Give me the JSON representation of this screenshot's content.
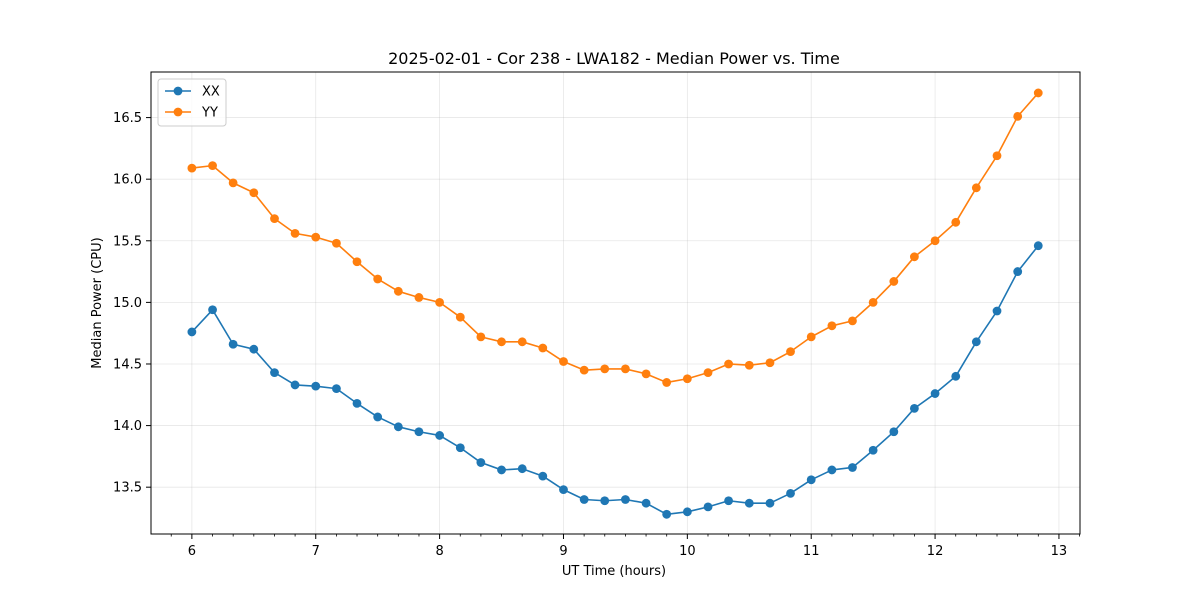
{
  "chart_data": {
    "type": "line",
    "title": "2025-02-01 - Cor 238 - LWA182 - Median Power vs. Time",
    "xlabel": "UT Time (hours)",
    "ylabel": "Median Power (CPU)",
    "xlim": [
      5.67,
      13.17
    ],
    "ylim": [
      13.12,
      16.87
    ],
    "xticks": [
      6,
      7,
      8,
      9,
      10,
      11,
      12,
      13
    ],
    "xtick_labels": [
      "6",
      "7",
      "8",
      "9",
      "10",
      "11",
      "12",
      "13"
    ],
    "yticks": [
      13.5,
      14.0,
      14.5,
      15.0,
      15.5,
      16.0,
      16.5
    ],
    "ytick_labels": [
      "13.5",
      "14.0",
      "14.5",
      "15.0",
      "15.5",
      "16.0",
      "16.5"
    ],
    "grid": true,
    "legend_position": "top-left",
    "x": [
      6.0,
      6.167,
      6.333,
      6.5,
      6.667,
      6.833,
      7.0,
      7.167,
      7.333,
      7.5,
      7.667,
      7.833,
      8.0,
      8.167,
      8.333,
      8.5,
      8.667,
      8.833,
      9.0,
      9.167,
      9.333,
      9.5,
      9.667,
      9.833,
      10.0,
      10.167,
      10.333,
      10.5,
      10.667,
      10.833,
      11.0,
      11.167,
      11.333,
      11.5,
      11.667,
      11.833,
      12.0,
      12.167,
      12.333,
      12.5,
      12.667,
      12.833
    ],
    "series": [
      {
        "name": "XX",
        "color": "#1f77b4",
        "values": [
          14.76,
          14.94,
          14.66,
          14.62,
          14.43,
          14.33,
          14.32,
          14.3,
          14.18,
          14.07,
          13.99,
          13.95,
          13.92,
          13.82,
          13.7,
          13.64,
          13.65,
          13.59,
          13.48,
          13.4,
          13.39,
          13.4,
          13.37,
          13.28,
          13.3,
          13.34,
          13.39,
          13.37,
          13.37,
          13.45,
          13.56,
          13.64,
          13.66,
          13.8,
          13.95,
          14.14,
          14.26,
          14.4,
          14.68,
          14.93,
          15.25,
          15.46
        ]
      },
      {
        "name": "YY",
        "color": "#ff7f0e",
        "values": [
          16.09,
          16.11,
          15.97,
          15.89,
          15.68,
          15.56,
          15.53,
          15.48,
          15.33,
          15.19,
          15.09,
          15.04,
          15.0,
          14.88,
          14.72,
          14.68,
          14.68,
          14.63,
          14.52,
          14.45,
          14.46,
          14.46,
          14.42,
          14.35,
          14.38,
          14.43,
          14.5,
          14.49,
          14.51,
          14.6,
          14.72,
          14.81,
          14.85,
          15.0,
          15.17,
          15.37,
          15.5,
          15.65,
          15.93,
          16.19,
          16.51,
          16.7
        ]
      }
    ]
  }
}
